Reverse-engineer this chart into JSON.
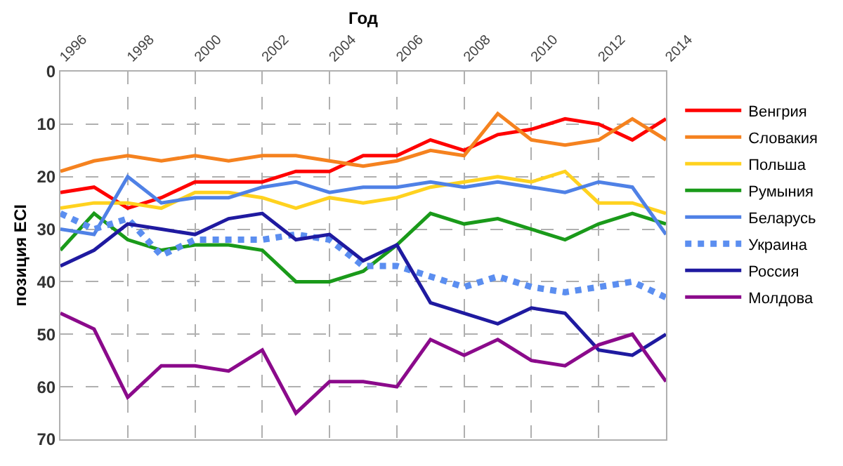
{
  "chart_data": {
    "type": "line",
    "xlabel": "Год",
    "ylabel": "позиция ECI",
    "x": [
      1996,
      1997,
      1998,
      1999,
      2000,
      2001,
      2002,
      2003,
      2004,
      2005,
      2006,
      2007,
      2008,
      2009,
      2010,
      2011,
      2012,
      2013,
      2014
    ],
    "xlim": [
      1996,
      2014
    ],
    "xticks": [
      1996,
      1998,
      2000,
      2002,
      2004,
      2006,
      2008,
      2010,
      2012,
      2014
    ],
    "ylim": [
      70,
      0
    ],
    "yticks": [
      0,
      10,
      20,
      30,
      40,
      50,
      60,
      70
    ],
    "grid": true,
    "legend": "right",
    "marker": "none",
    "line_style": "solid",
    "series": [
      {
        "name": "Венгрия",
        "color": "#ff0000",
        "values": [
          23,
          22,
          26,
          24,
          21,
          21,
          21,
          19,
          19,
          16,
          16,
          13,
          15,
          12,
          11,
          9,
          10,
          13,
          9
        ]
      },
      {
        "name": "Словакия",
        "color": "#f5821f",
        "values": [
          19,
          17,
          16,
          17,
          16,
          17,
          16,
          16,
          17,
          18,
          17,
          15,
          16,
          8,
          13,
          14,
          13,
          9,
          13
        ]
      },
      {
        "name": "Польша",
        "color": "#ffd21f",
        "values": [
          26,
          25,
          25,
          26,
          23,
          23,
          24,
          26,
          24,
          25,
          24,
          22,
          21,
          20,
          21,
          19,
          25,
          25,
          27
        ]
      },
      {
        "name": "Румыния",
        "color": "#1a9a1a",
        "values": [
          34,
          27,
          32,
          34,
          33,
          33,
          34,
          40,
          40,
          38,
          33,
          27,
          29,
          28,
          30,
          32,
          29,
          27,
          29
        ]
      },
      {
        "name": "Беларусь",
        "color": "#4f81e6",
        "values": [
          30,
          31,
          20,
          25,
          24,
          24,
          22,
          21,
          23,
          22,
          22,
          21,
          22,
          21,
          22,
          23,
          21,
          22,
          31
        ]
      },
      {
        "name": "Украина",
        "color": "#5b8ef0",
        "line_style": "dotted",
        "values": [
          27,
          30,
          28,
          35,
          32,
          32,
          32,
          31,
          32,
          37,
          37,
          39,
          41,
          39,
          41,
          42,
          41,
          40,
          43
        ]
      },
      {
        "name": "Россия",
        "color": "#1f1aa0",
        "values": [
          37,
          34,
          29,
          30,
          31,
          28,
          27,
          32,
          31,
          36,
          33,
          44,
          46,
          48,
          45,
          46,
          53,
          54,
          50
        ]
      },
      {
        "name": "Молдова",
        "color": "#8b0a8b",
        "values": [
          46,
          49,
          62,
          56,
          56,
          57,
          53,
          65,
          59,
          59,
          60,
          51,
          54,
          51,
          55,
          56,
          52,
          50,
          59
        ]
      }
    ]
  }
}
